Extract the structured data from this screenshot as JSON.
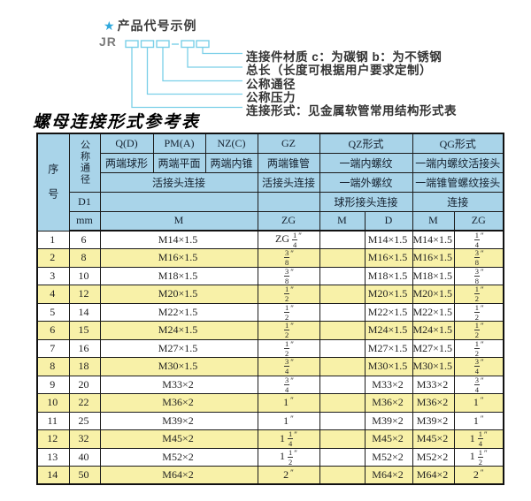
{
  "diagram": {
    "star": "★",
    "title": "产品代号示例",
    "prefix": "JR",
    "labels": [
      "连接件材质  c：为碳钢  b：为不锈钢",
      "总长（长度可根据用户要求定制）",
      "公称通径",
      "公称压力",
      "连接形式：见金属软管常用结构形式表"
    ],
    "line_color": "#7acfe8"
  },
  "table": {
    "title": "螺母连接形式参考表",
    "colors": {
      "header_bg": "#a9d4e9",
      "alt_row_bg": "#f8f1a8",
      "border": "#1b1b1b"
    },
    "header": {
      "seq": "序号",
      "dn": "公称通径",
      "d1": "D1",
      "mm": "mm",
      "q": "Q(D)",
      "q_sub": "两端球形",
      "pm": "PM(A)",
      "pm_sub": "两端平面",
      "nz": "NZ(C)",
      "nz_sub": "两端内锥",
      "gz": "GZ",
      "gz_sub": "两端锥管",
      "qz": "QZ形式",
      "qz_sub1": "一端内螺纹",
      "qz_sub2": "一端外螺纹",
      "qz_sub3": "球形接头连接",
      "qg": "QG形式",
      "qg_sub1": "一端内螺纹活接头",
      "qg_sub2": "一端锥管螺纹接头",
      "qg_sub3": "连接",
      "swivel": "活接头连接",
      "swivel_gz": "活接头连接",
      "m": "M",
      "zg": "ZG",
      "qz_m": "M",
      "qz_d": "D",
      "qg_m": "M",
      "qg_zg": "ZG"
    },
    "rows": [
      {
        "seq": "1",
        "dn": "6",
        "m": "M14×1.5",
        "gz": "ZG 1/4\"",
        "qz_m": "",
        "qz_d": "M14×1.5",
        "qg_m": "M14×1.5",
        "qg_zg": "1/4\""
      },
      {
        "seq": "2",
        "dn": "8",
        "m": "M16×1.5",
        "gz": "3/8\"",
        "qz_m": "",
        "qz_d": "M16×1.5",
        "qg_m": "M16×1.5",
        "qg_zg": "3/8\""
      },
      {
        "seq": "3",
        "dn": "10",
        "m": "M18×1.5",
        "gz": "3/8\"",
        "qz_m": "",
        "qz_d": "M18×1.5",
        "qg_m": "M18×1.5",
        "qg_zg": "3/8\""
      },
      {
        "seq": "4",
        "dn": "12",
        "m": "M20×1.5",
        "gz": "1/2\"",
        "qz_m": "",
        "qz_d": "M20×1.5",
        "qg_m": "M20×1.5",
        "qg_zg": "1/2\""
      },
      {
        "seq": "5",
        "dn": "14",
        "m": "M22×1.5",
        "gz": "1/2\"",
        "qz_m": "",
        "qz_d": "M22×1.5",
        "qg_m": "M22×1.5",
        "qg_zg": "1/2\""
      },
      {
        "seq": "6",
        "dn": "15",
        "m": "M24×1.5",
        "gz": "1/2\"",
        "qz_m": "",
        "qz_d": "M24×1.5",
        "qg_m": "M24×1.5",
        "qg_zg": "1/2\""
      },
      {
        "seq": "7",
        "dn": "16",
        "m": "M27×1.5",
        "gz": "1/2\"",
        "qz_m": "",
        "qz_d": "M27×1.5",
        "qg_m": "M27×1.5",
        "qg_zg": "1/2\""
      },
      {
        "seq": "8",
        "dn": "18",
        "m": "M30×1.5",
        "gz": "3/4\"",
        "qz_m": "",
        "qz_d": "M30×1.5",
        "qg_m": "M30×1.5",
        "qg_zg": "3/4\""
      },
      {
        "seq": "9",
        "dn": "20",
        "m": "M33×2",
        "gz": "3/4\"",
        "qz_m": "",
        "qz_d": "M33×2",
        "qg_m": "M33×2",
        "qg_zg": "3/4\""
      },
      {
        "seq": "10",
        "dn": "22",
        "m": "M36×2",
        "gz": "1\"",
        "qz_m": "",
        "qz_d": "M36×2",
        "qg_m": "M36×2",
        "qg_zg": "1\""
      },
      {
        "seq": "11",
        "dn": "25",
        "m": "M39×2",
        "gz": "1\"",
        "qz_m": "",
        "qz_d": "M39×2",
        "qg_m": "M39×2",
        "qg_zg": "1\""
      },
      {
        "seq": "12",
        "dn": "32",
        "m": "M45×2",
        "gz": "1 1/4\"",
        "qz_m": "",
        "qz_d": "M45×2",
        "qg_m": "M45×2",
        "qg_zg": "1 1/4\""
      },
      {
        "seq": "13",
        "dn": "40",
        "m": "M52×2",
        "gz": "1 1/2\"",
        "qz_m": "",
        "qz_d": "M52×2",
        "qg_m": "M52×2",
        "qg_zg": "1 1/2\""
      },
      {
        "seq": "14",
        "dn": "50",
        "m": "M64×2",
        "gz": "2\"",
        "qz_m": "",
        "qz_d": "M64×2",
        "qg_m": "M64×2",
        "qg_zg": "2\""
      }
    ]
  }
}
